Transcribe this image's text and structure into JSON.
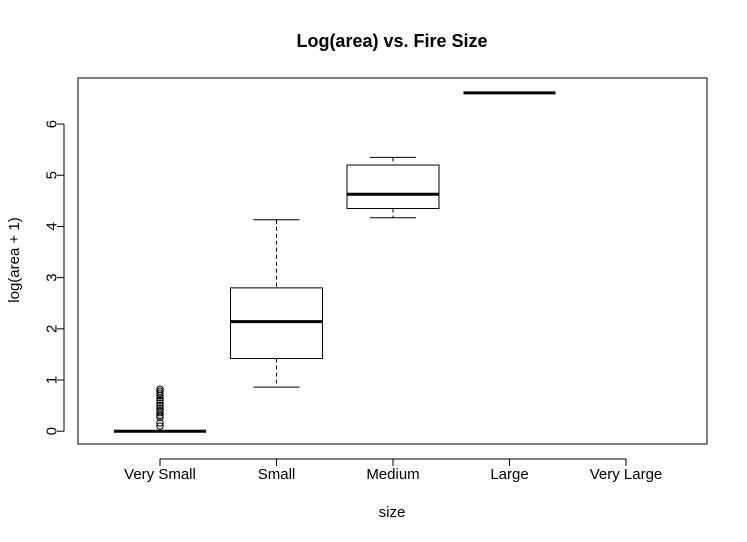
{
  "chart_data": {
    "type": "box",
    "title": "Log(area) vs. Fire Size",
    "xlabel": "size",
    "ylabel": "log(area + 1)",
    "categories": [
      "Very Small",
      "Small",
      "Medium",
      "Large",
      "Very Large"
    ],
    "ylim": [
      -0.25,
      6.9
    ],
    "yticks": [
      0,
      1,
      2,
      3,
      4,
      5,
      6
    ],
    "grid": false,
    "legend": "none",
    "colors": {
      "stroke": "#000000",
      "background": "#ffffff"
    },
    "boxes": [
      {
        "category": "Very Small",
        "whisker_low": 0,
        "q1": 0,
        "median": 0,
        "q3": 0,
        "whisker_high": 0,
        "outliers": [
          0.1,
          0.16,
          0.27,
          0.31,
          0.36,
          0.4,
          0.45,
          0.5,
          0.55,
          0.6,
          0.65,
          0.7,
          0.74,
          0.78,
          0.82
        ]
      },
      {
        "category": "Small",
        "whisker_low": 0.86,
        "q1": 1.42,
        "median": 2.14,
        "q3": 2.8,
        "whisker_high": 4.13,
        "outliers": []
      },
      {
        "category": "Medium",
        "whisker_low": 4.17,
        "q1": 4.35,
        "median": 4.63,
        "q3": 5.2,
        "whisker_high": 5.35,
        "outliers": []
      },
      {
        "category": "Large",
        "whisker_low": 6.61,
        "q1": 6.61,
        "median": 6.61,
        "q3": 6.61,
        "whisker_high": 6.61,
        "outliers": []
      },
      {
        "category": "Very Large",
        "empty": true
      }
    ]
  }
}
